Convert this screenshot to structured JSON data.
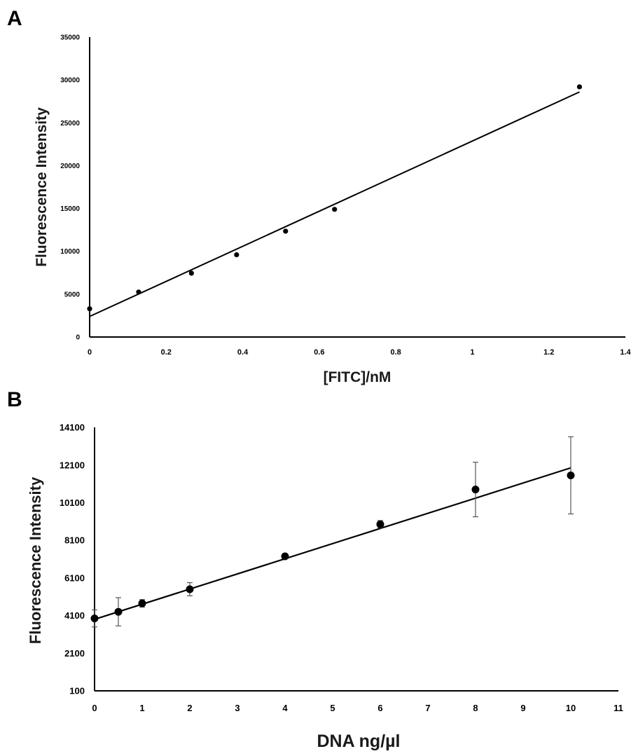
{
  "chart_data": [
    {
      "type": "scatter",
      "panel": "A",
      "xlabel": "[FITC]/nM",
      "ylabel": "Fluorescence Intensity",
      "xlim": [
        0,
        1.4
      ],
      "ylim": [
        0,
        35000
      ],
      "x_ticks": [
        "0",
        "0.2",
        "0.4",
        "0.6",
        "0.8",
        "1",
        "1.2",
        "1.4"
      ],
      "y_ticks": [
        "0",
        "5000",
        "10000",
        "15000",
        "20000",
        "25000",
        "30000",
        "35000"
      ],
      "x": [
        0,
        0.128,
        0.266,
        0.384,
        0.512,
        0.64,
        1.28
      ],
      "y": [
        3300,
        5250,
        7450,
        9600,
        12350,
        14900,
        29200
      ],
      "trendline": {
        "x": [
          0,
          1.28
        ],
        "y": [
          2400,
          28600
        ]
      },
      "grid": false
    },
    {
      "type": "scatter",
      "panel": "B",
      "xlabel": "DNA ng/µl",
      "ylabel": "Fluorescence Intensity",
      "xlim": [
        0,
        11
      ],
      "ylim": [
        100,
        14100
      ],
      "x_ticks": [
        "0",
        "1",
        "2",
        "3",
        "4",
        "5",
        "6",
        "7",
        "8",
        "9",
        "10",
        "11"
      ],
      "y_ticks": [
        "100",
        "2100",
        "4100",
        "6100",
        "8100",
        "10100",
        "12100",
        "14100"
      ],
      "x": [
        0,
        0.5,
        1,
        2,
        4,
        6,
        8,
        10
      ],
      "y": [
        3950,
        4300,
        4750,
        5500,
        7250,
        8950,
        10800,
        11550
      ],
      "error": [
        450,
        750,
        200,
        350,
        0,
        200,
        1450,
        2050
      ],
      "trendline": {
        "x": [
          0,
          10
        ],
        "y": [
          3900,
          11950
        ]
      },
      "grid": false
    }
  ]
}
